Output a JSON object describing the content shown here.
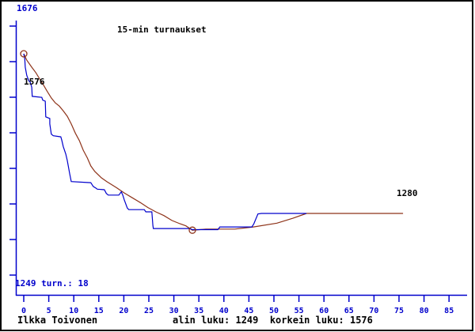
{
  "colors": {
    "axis": "#0000cc",
    "rating_line": "#0000cc",
    "trend_line": "#8e3319",
    "marker": "#8e3319",
    "text": "#000000",
    "background": "#ffffff",
    "border": "#000000"
  },
  "annotations": {
    "y_top": "1676",
    "y_bottom_note": "1249 turn.: 18",
    "start_value": "1576",
    "end_value": "1280"
  },
  "footer": {
    "player": "Ilkka Toivonen",
    "summary": "alin luku: 1249  korkein luku: 1576"
  },
  "chart_data": {
    "type": "line",
    "title": "15-min turnaukset",
    "xlabel": "",
    "ylabel": "",
    "x_ticks": [
      0,
      5,
      10,
      15,
      20,
      25,
      30,
      35,
      40,
      45,
      50,
      55,
      60,
      65,
      70,
      75,
      80,
      85
    ],
    "y_axis": {
      "top_label": 1676,
      "bottom_label": 1249,
      "tick_count": 8,
      "labeled_ticks": false
    },
    "legend": "none",
    "grid": false,
    "stats": {
      "min_rating": 1249,
      "max_rating": 1576,
      "final_rating": 1280,
      "tournaments": 18
    },
    "series": [
      {
        "name": "tournament-rating",
        "color": "#0000cc",
        "style": "stepped",
        "points": [
          [
            0,
            1576
          ],
          [
            0.2,
            1566
          ],
          [
            0.3,
            1551
          ],
          [
            0.6,
            1536
          ],
          [
            1.0,
            1526
          ],
          [
            1.3,
            1523
          ],
          [
            1.6,
            1514
          ],
          [
            1.7,
            1497
          ],
          [
            3.6,
            1495
          ],
          [
            3.8,
            1490
          ],
          [
            4.3,
            1488
          ],
          [
            4.4,
            1459
          ],
          [
            5.2,
            1456
          ],
          [
            5.2,
            1446
          ],
          [
            5.5,
            1427
          ],
          [
            5.9,
            1424
          ],
          [
            7.4,
            1422
          ],
          [
            7.6,
            1416
          ],
          [
            7.9,
            1404
          ],
          [
            8.4,
            1390
          ],
          [
            8.7,
            1378
          ],
          [
            9.2,
            1353
          ],
          [
            9.5,
            1339
          ],
          [
            13.4,
            1337
          ],
          [
            13.9,
            1330
          ],
          [
            14.4,
            1327
          ],
          [
            14.7,
            1325
          ],
          [
            16.1,
            1324
          ],
          [
            16.5,
            1317
          ],
          [
            16.9,
            1314
          ],
          [
            19.0,
            1314
          ],
          [
            19.5,
            1320
          ],
          [
            19.8,
            1314
          ],
          [
            20.1,
            1305
          ],
          [
            20.7,
            1290
          ],
          [
            21.0,
            1287
          ],
          [
            24.1,
            1287
          ],
          [
            24.4,
            1283
          ],
          [
            25.6,
            1283
          ],
          [
            25.8,
            1258
          ],
          [
            25.9,
            1252
          ],
          [
            33.2,
            1252
          ],
          [
            33.7,
            1250
          ],
          [
            38.8,
            1250
          ],
          [
            39.2,
            1255
          ],
          [
            45.6,
            1255
          ],
          [
            46.0,
            1261
          ],
          [
            46.8,
            1279
          ],
          [
            47.5,
            1280
          ],
          [
            56.5,
            1280
          ]
        ]
      },
      {
        "name": "smoothed-rating",
        "color": "#8e3319",
        "style": "smooth",
        "points": [
          [
            0,
            1576
          ],
          [
            0.6,
            1564
          ],
          [
            1.6,
            1551
          ],
          [
            2.4,
            1541
          ],
          [
            3.2,
            1529
          ],
          [
            4.0,
            1517
          ],
          [
            4.7,
            1506
          ],
          [
            5.5,
            1494
          ],
          [
            6.3,
            1485
          ],
          [
            7.1,
            1479
          ],
          [
            7.9,
            1470
          ],
          [
            8.7,
            1460
          ],
          [
            9.5,
            1446
          ],
          [
            10.3,
            1429
          ],
          [
            11.1,
            1415
          ],
          [
            11.9,
            1397
          ],
          [
            12.7,
            1383
          ],
          [
            13.4,
            1368
          ],
          [
            14.2,
            1358
          ],
          [
            15.5,
            1346
          ],
          [
            16.6,
            1339
          ],
          [
            18.5,
            1328
          ],
          [
            20.1,
            1318
          ],
          [
            21.7,
            1309
          ],
          [
            23.3,
            1300
          ],
          [
            24.8,
            1291
          ],
          [
            26.4,
            1283
          ],
          [
            28.0,
            1276
          ],
          [
            29.6,
            1267
          ],
          [
            31.2,
            1261
          ],
          [
            32.4,
            1257
          ],
          [
            33.7,
            1249
          ],
          [
            36.4,
            1251
          ],
          [
            42.2,
            1251
          ],
          [
            45.9,
            1255
          ],
          [
            50.6,
            1262
          ],
          [
            53.8,
            1271
          ],
          [
            56.5,
            1280
          ],
          [
            75.8,
            1280
          ]
        ]
      }
    ],
    "markers": [
      {
        "x": 0,
        "y": 1576,
        "label": "1576"
      },
      {
        "x": 33.7,
        "y": 1249,
        "label": ""
      }
    ]
  }
}
